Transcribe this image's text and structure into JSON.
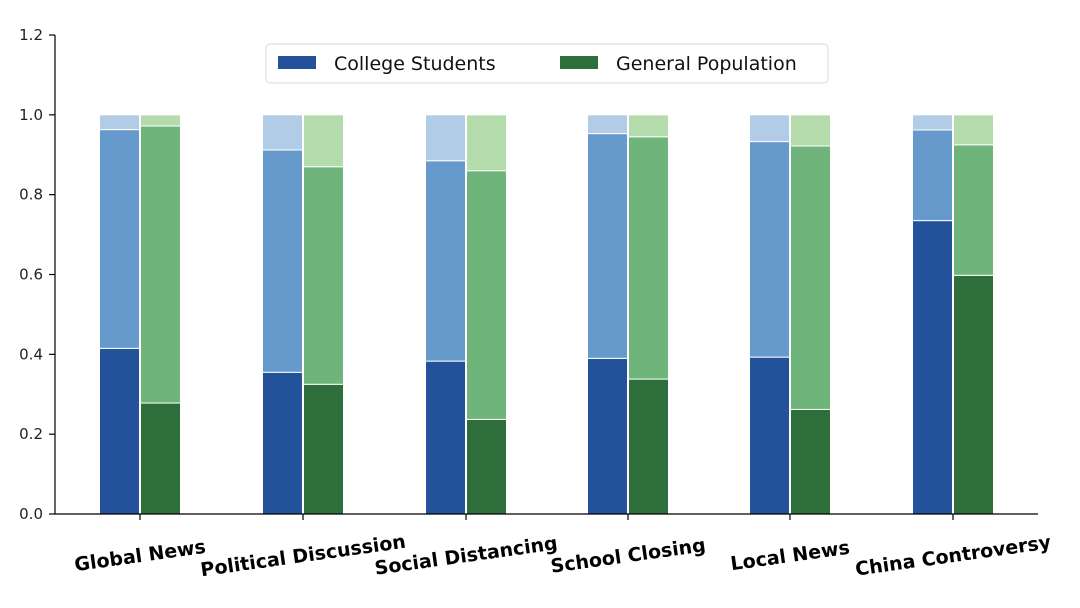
{
  "chart_data": {
    "type": "bar",
    "stacked": true,
    "title": "",
    "xlabel": "",
    "ylabel": "",
    "ylim": [
      0,
      1.2
    ],
    "yticks": [
      "0.0",
      "0.2",
      "0.4",
      "0.6",
      "0.8",
      "1.0",
      "1.2"
    ],
    "ytick_values": [
      0,
      0.2,
      0.4,
      0.6,
      0.8,
      1.0,
      1.2
    ],
    "categories": [
      "Global News",
      "Political Discussion",
      "Social Distancing",
      "School Closing",
      "Local News",
      "China Controversy"
    ],
    "legend_position": "top-center",
    "series": [
      {
        "name": "College Students",
        "colors": [
          "#23519a",
          "#6699cc",
          "#b0cce6"
        ],
        "segments": [
          [
            0.415,
            0.548,
            0.037
          ],
          [
            0.355,
            0.557,
            0.088
          ],
          [
            0.383,
            0.502,
            0.115
          ],
          [
            0.39,
            0.563,
            0.047
          ],
          [
            0.393,
            0.54,
            0.067
          ],
          [
            0.735,
            0.227,
            0.038
          ]
        ]
      },
      {
        "name": "General Population",
        "colors": [
          "#2e6e3a",
          "#6fb47a",
          "#b3dbab"
        ],
        "segments": [
          [
            0.278,
            0.694,
            0.028
          ],
          [
            0.325,
            0.545,
            0.13
          ],
          [
            0.237,
            0.623,
            0.14
          ],
          [
            0.338,
            0.607,
            0.055
          ],
          [
            0.262,
            0.66,
            0.078
          ],
          [
            0.598,
            0.327,
            0.075
          ]
        ]
      }
    ]
  }
}
